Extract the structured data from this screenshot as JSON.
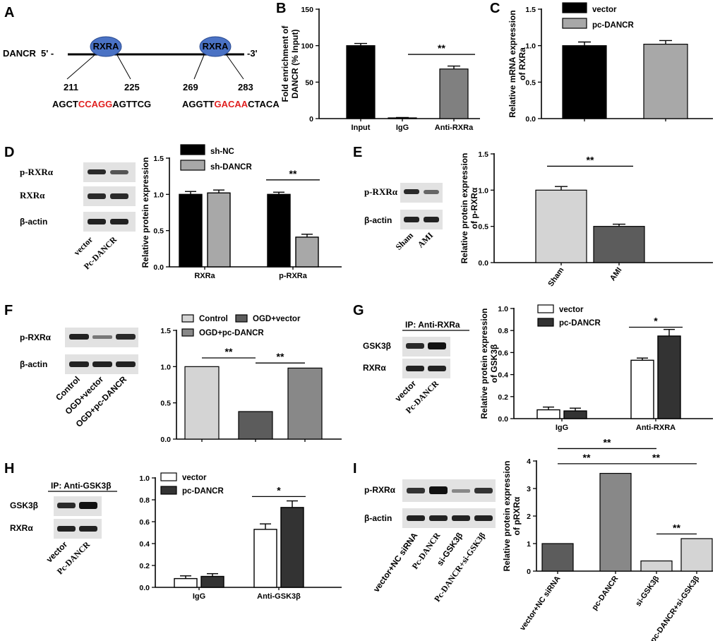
{
  "panels": {
    "A": {
      "letter": "A",
      "gene": "DANCR",
      "five_prime": "5' -",
      "three_prime": "-3'",
      "sites": [
        {
          "protein": "RXRA",
          "start": "211",
          "end": "225",
          "seq_pre": "AGCT",
          "seq_hit": "CCAGG",
          "seq_post": "AGTTCG"
        },
        {
          "protein": "RXRA",
          "start": "269",
          "end": "283",
          "seq_pre": "AGGTT",
          "seq_hit": "GACAA",
          "seq_post": "CTACA"
        }
      ],
      "colors": {
        "protein_fill": "#4a72c4",
        "highlight": "#e02020"
      }
    },
    "B": {
      "letter": "B"
    },
    "C": {
      "letter": "C"
    },
    "D": {
      "letter": "D",
      "blot_rows": [
        "p-RXRα",
        "RXRα",
        "β-actin"
      ],
      "lanes": [
        "vector",
        "Pc-DANCR"
      ]
    },
    "E": {
      "letter": "E",
      "blot_rows": [
        "p-RXRα",
        "β-actin"
      ],
      "lanes": [
        "Sham",
        "AMI"
      ]
    },
    "F": {
      "letter": "F",
      "blot_rows": [
        "p-RXRα",
        "β-actin"
      ],
      "lanes": [
        "Control",
        "OGD+vector",
        "OGD+pc-DANCR"
      ]
    },
    "G": {
      "letter": "G",
      "ip_title": "IP: Anti-RXRa",
      "blot_rows": [
        "GSK3β",
        "RXRα"
      ],
      "lanes": [
        "vector",
        "Pc-DANCR"
      ]
    },
    "H": {
      "letter": "H",
      "ip_title": "IP: Anti-GSK3β",
      "blot_rows": [
        "GSK3β",
        "RXRα"
      ],
      "lanes": [
        "vector",
        "Pc-DANCR"
      ]
    },
    "I": {
      "letter": "I",
      "blot_rows": [
        "p-RXRα",
        "β-actin"
      ],
      "lanes": [
        "vector+NC siRNA",
        "Pc-DANCR",
        "si-GSK3β",
        "Pc-DANCR+si-GSK3β"
      ]
    }
  },
  "chart_data": [
    {
      "id": "B",
      "type": "bar",
      "ylabel": "Fold enrichment of DANCR (% Input)",
      "ylim": [
        0,
        150
      ],
      "yticks": [
        "0",
        "50",
        "100",
        "150"
      ],
      "categories": [
        "Input",
        "IgG",
        "Anti-RXRa"
      ],
      "values": [
        100,
        1,
        68
      ],
      "errors": [
        3,
        0.5,
        4
      ],
      "fills": [
        "#000000",
        "#000000",
        "#808080"
      ],
      "annotations": [
        {
          "text": "**",
          "from": 1,
          "to": 2,
          "y": 88
        }
      ]
    },
    {
      "id": "C",
      "type": "bar",
      "ylabel": "Relative mRNA expression of RXRa",
      "ylim": [
        0,
        1.5
      ],
      "yticks": [
        "0.0",
        "0.5",
        "1.0",
        "1.5"
      ],
      "categories": [
        "vector",
        "pc-DANCR"
      ],
      "values": [
        1.0,
        1.02
      ],
      "errors": [
        0.05,
        0.05
      ],
      "fills": [
        "#000000",
        "#a8a8a8"
      ],
      "legend": [
        {
          "name": "vector",
          "color": "#000000"
        },
        {
          "name": "pc-DANCR",
          "color": "#a8a8a8"
        }
      ],
      "show_categories": false
    },
    {
      "id": "D",
      "type": "bar",
      "ylabel": "Relative protein expression",
      "ylim": [
        0,
        1.5
      ],
      "yticks": [
        "0.0",
        "0.5",
        "1.0",
        "1.5"
      ],
      "categories": [
        "RXRa",
        "p-RXRa"
      ],
      "series": [
        {
          "name": "sh-NC",
          "values": [
            1.0,
            1.0
          ],
          "errors": [
            0.04,
            0.03
          ],
          "color": "#000000"
        },
        {
          "name": "sh-DANCR",
          "values": [
            1.02,
            0.41
          ],
          "errors": [
            0.04,
            0.04
          ],
          "color": "#a8a8a8"
        }
      ],
      "annotations": [
        {
          "text": "**",
          "group": 1,
          "y": 1.2
        }
      ]
    },
    {
      "id": "E",
      "type": "bar",
      "ylabel": "Relative protein expression of p-RXRα",
      "ylim": [
        0,
        1.5
      ],
      "yticks": [
        "0.0",
        "0.5",
        "1.0",
        "1.5"
      ],
      "categories": [
        "Sham",
        "AMI"
      ],
      "values": [
        1.0,
        0.5
      ],
      "errors": [
        0.05,
        0.03
      ],
      "fills": [
        "#d4d4d4",
        "#5c5c5c"
      ],
      "rotate_categories": true,
      "annotations": [
        {
          "text": "**",
          "from": 0,
          "to": 1,
          "y": 1.33
        }
      ]
    },
    {
      "id": "F",
      "type": "bar",
      "ylabel": "",
      "ylim": [
        0,
        1.5
      ],
      "yticks": [
        "0.0",
        "0.5",
        "1.0",
        "1.5"
      ],
      "categories": [
        "Control",
        "OGD+vector",
        "OGD+pc-DANCR"
      ],
      "values": [
        1.0,
        0.38,
        0.98
      ],
      "fills": [
        "#d4d4d4",
        "#5c5c5c",
        "#888888"
      ],
      "show_categories": false,
      "legend": [
        {
          "name": "Control",
          "color": "#d4d4d4"
        },
        {
          "name": "OGD+vector",
          "color": "#5c5c5c"
        },
        {
          "name": "OGD+pc-DANCR",
          "color": "#888888"
        }
      ],
      "annotations": [
        {
          "text": "**",
          "from": 0,
          "to": 1,
          "y": 1.12
        },
        {
          "text": "**",
          "from": 1,
          "to": 2,
          "y": 1.05
        }
      ]
    },
    {
      "id": "G",
      "type": "bar",
      "ylabel": "Relative protein expression of GSK3β",
      "ylim": [
        0,
        1.0
      ],
      "yticks": [
        "0.0",
        "0.2",
        "0.4",
        "0.6",
        "0.8",
        "1.0"
      ],
      "categories": [
        "IgG",
        "Anti-RXRA"
      ],
      "series": [
        {
          "name": "vector",
          "values": [
            0.08,
            0.53
          ],
          "errors": [
            0.025,
            0.02
          ],
          "color": "#ffffff"
        },
        {
          "name": "pc-DANCR",
          "values": [
            0.07,
            0.75
          ],
          "errors": [
            0.025,
            0.06
          ],
          "color": "#333333"
        }
      ],
      "annotations": [
        {
          "text": "*",
          "group": 1,
          "y": 0.83
        }
      ]
    },
    {
      "id": "H",
      "type": "bar",
      "ylabel": "",
      "ylim": [
        0,
        1.0
      ],
      "yticks": [
        "0.0",
        "0.2",
        "0.4",
        "0.6",
        "0.8",
        "1.0"
      ],
      "categories": [
        "IgG",
        "Anti-GSK3β"
      ],
      "series": [
        {
          "name": "vector",
          "values": [
            0.08,
            0.53
          ],
          "errors": [
            0.025,
            0.05
          ],
          "color": "#ffffff"
        },
        {
          "name": "pc-DANCR",
          "values": [
            0.1,
            0.73
          ],
          "errors": [
            0.025,
            0.06
          ],
          "color": "#333333"
        }
      ],
      "annotations": [
        {
          "text": "*",
          "group": 1,
          "y": 0.83
        }
      ]
    },
    {
      "id": "I",
      "type": "bar",
      "ylabel": "Relative protein expression of pRXRα",
      "ylim": [
        0,
        4
      ],
      "yticks": [
        "0",
        "1",
        "2",
        "3",
        "4"
      ],
      "categories": [
        "vector+NC siRNA",
        "pc-DANCR",
        "si-GSK3β",
        "pc-DANCR+si-GSK3β"
      ],
      "values": [
        1.0,
        3.55,
        0.37,
        1.18
      ],
      "fills": [
        "#5c5c5c",
        "#888888",
        "#d4d4d4",
        "#d4d4d4"
      ],
      "rotate_categories": true,
      "annotations": [
        {
          "text": "**",
          "from": 0,
          "to": 2,
          "y": 4.45
        },
        {
          "text": "**",
          "from": 0,
          "to": 1,
          "y": 3.9
        },
        {
          "text": "**",
          "from": 1,
          "to": 3,
          "y": 3.9
        },
        {
          "text": "**",
          "from": 2,
          "to": 3,
          "y": 1.35
        }
      ]
    }
  ]
}
